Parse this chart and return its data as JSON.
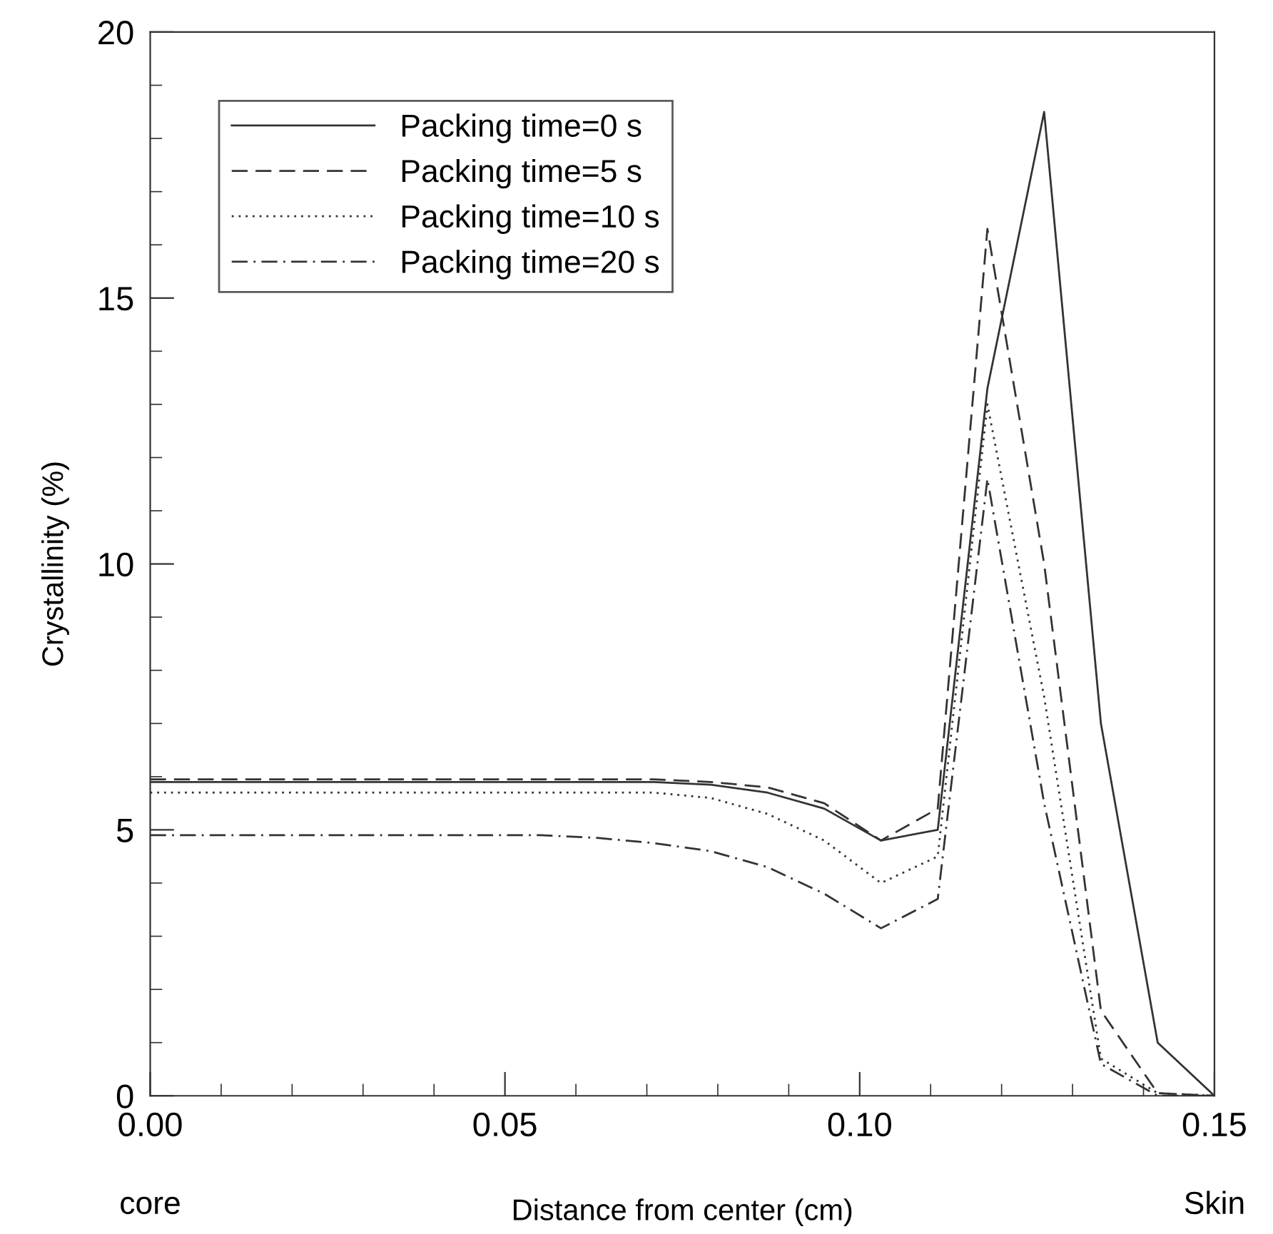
{
  "chart_data": {
    "type": "line",
    "xlabel": "Distance from center (cm)",
    "ylabel": "Crystallinity (%)",
    "annotations": [
      "core",
      "Skin"
    ],
    "xlim": [
      0,
      0.15
    ],
    "ylim": [
      0,
      20
    ],
    "xticks": [
      {
        "value": 0,
        "label": "0.00"
      },
      {
        "value": 0.01,
        "label": null
      },
      {
        "value": 0.02,
        "label": null
      },
      {
        "value": 0.03,
        "label": null
      },
      {
        "value": 0.04,
        "label": null
      },
      {
        "value": 0.05,
        "label": "0.05"
      },
      {
        "value": 0.06,
        "label": null
      },
      {
        "value": 0.07,
        "label": null
      },
      {
        "value": 0.08,
        "label": null
      },
      {
        "value": 0.09,
        "label": null
      },
      {
        "value": 0.1,
        "label": "0.10"
      },
      {
        "value": 0.11,
        "label": null
      },
      {
        "value": 0.12,
        "label": null
      },
      {
        "value": 0.13,
        "label": null
      },
      {
        "value": 0.14,
        "label": null
      },
      {
        "value": 0.15,
        "label": "0.15"
      }
    ],
    "yticks": [
      0,
      {
        "value": 1,
        "label": null
      },
      {
        "value": 2,
        "label": null
      },
      {
        "value": 3,
        "label": null
      },
      {
        "value": 4,
        "label": null
      },
      5,
      {
        "value": 6,
        "label": null
      },
      {
        "value": 7,
        "label": null
      },
      {
        "value": 8,
        "label": null
      },
      {
        "value": 9,
        "label": null
      },
      10,
      {
        "value": 11,
        "label": null
      },
      {
        "value": 12,
        "label": null
      },
      {
        "value": 13,
        "label": null
      },
      {
        "value": 14,
        "label": null
      },
      15,
      {
        "value": 16,
        "label": null
      },
      {
        "value": 17,
        "label": null
      },
      {
        "value": 18,
        "label": null
      },
      {
        "value": 19,
        "label": null
      },
      20
    ],
    "x": [
      0,
      0.047,
      0.055,
      0.063,
      0.071,
      0.079,
      0.087,
      0.095,
      0.103,
      0.111,
      0.118,
      0.126,
      0.134,
      0.142,
      0.15
    ],
    "legend": "top left",
    "grid": false,
    "marker": "none",
    "series": [
      {
        "name": "Packing time=0 s",
        "color": "#333333",
        "line_style": "solid",
        "values": [
          5.9,
          5.9,
          5.9,
          5.9,
          5.9,
          5.85,
          5.7,
          5.4,
          4.8,
          5.0,
          13.3,
          18.5,
          7.0,
          1.0,
          0
        ]
      },
      {
        "name": "Packing time=5 s",
        "color": "#333333",
        "line_style": "dashed",
        "values": [
          5.95,
          5.95,
          5.95,
          5.95,
          5.95,
          5.9,
          5.8,
          5.5,
          4.8,
          5.4,
          16.3,
          10.0,
          1.6,
          0.05,
          0
        ]
      },
      {
        "name": "Packing time=10 s",
        "color": "#333333",
        "line_style": "dotted",
        "values": [
          5.7,
          5.7,
          5.7,
          5.7,
          5.7,
          5.6,
          5.3,
          4.8,
          4.0,
          4.5,
          13.0,
          7.5,
          0.7,
          0.05,
          0
        ]
      },
      {
        "name": "Packing time=20 s",
        "color": "#333333",
        "line_style": "dashdot",
        "values": [
          4.9,
          4.9,
          4.9,
          4.85,
          4.75,
          4.6,
          4.3,
          3.8,
          3.15,
          3.7,
          11.6,
          5.5,
          0.6,
          0,
          0
        ]
      }
    ]
  }
}
